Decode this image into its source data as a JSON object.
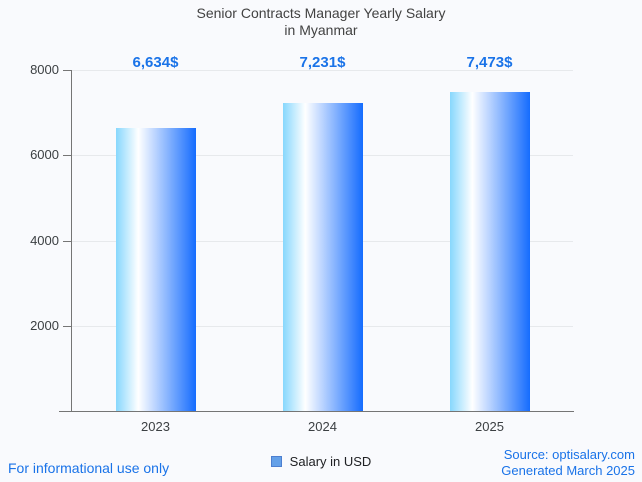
{
  "title": {
    "line1": "Senior Contracts Manager Yearly Salary",
    "line2": "in Myanmar"
  },
  "chart_data": {
    "type": "bar",
    "categories": [
      "2023",
      "2024",
      "2025"
    ],
    "series": [
      {
        "name": "Salary in USD",
        "values": [
          6634,
          7231,
          7473
        ]
      }
    ],
    "value_labels": [
      "6,634$",
      "7,231$",
      "7,473$"
    ],
    "title": "Senior Contracts Manager Yearly Salary in Myanmar",
    "xlabel": "",
    "ylabel": "",
    "ylim": [
      0,
      8000
    ],
    "yticks": [
      2000,
      4000,
      6000,
      8000
    ],
    "grid": true,
    "legend_position": "bottom",
    "annotation_color": "#1a73e8",
    "bar_gradient": [
      "#87d7fd",
      "#ffffff",
      "#156cfe"
    ]
  },
  "legend": {
    "label": "Salary in USD",
    "swatch_color": "#64a0e8"
  },
  "footer": {
    "disclaimer": "For informational use only",
    "source": "Source: optisalary.com",
    "generated": "Generated March 2025",
    "link_color": "#1a73e8"
  }
}
